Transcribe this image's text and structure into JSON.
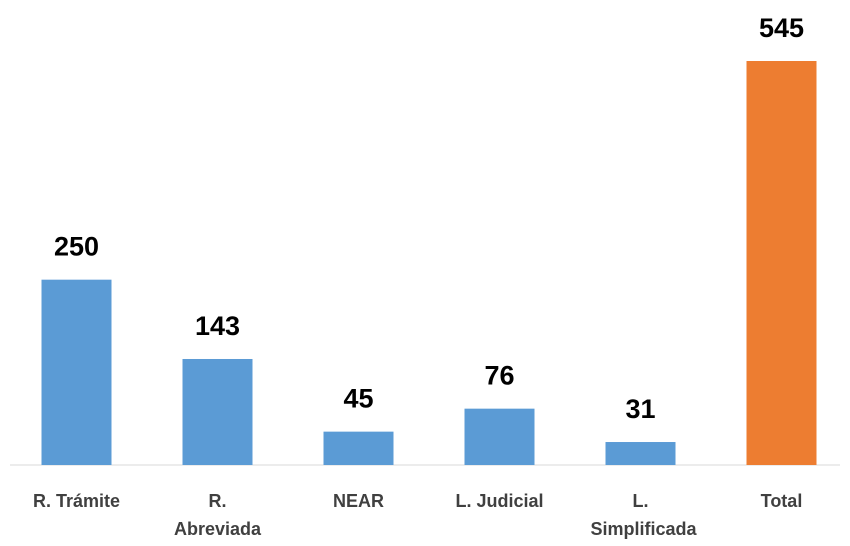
{
  "chart_data": {
    "type": "bar",
    "categories": [
      "R. Trámite",
      "R. Abreviada",
      "NEAR",
      "L. Judicial",
      "L. Simplificada",
      "Total"
    ],
    "values": [
      250,
      143,
      45,
      76,
      31,
      545
    ],
    "colors": [
      "#5b9bd5",
      "#5b9bd5",
      "#5b9bd5",
      "#5b9bd5",
      "#5b9bd5",
      "#ed7d31"
    ]
  }
}
